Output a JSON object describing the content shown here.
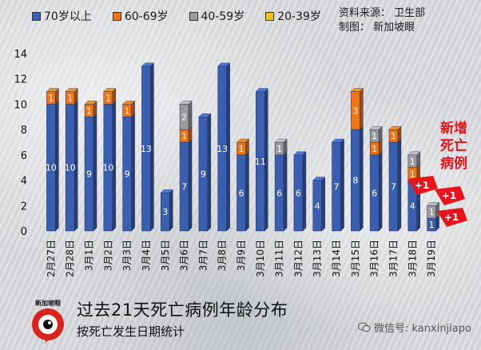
{
  "legend": [
    {
      "label": "70岁以上",
      "color": "#3b5fb0"
    },
    {
      "label": "60-69岁",
      "color": "#f07414"
    },
    {
      "label": "40-59岁",
      "color": "#9b9b9b"
    },
    {
      "label": "20-39岁",
      "color": "#f2c418"
    }
  ],
  "source_line1": "资料来源：   卫生部",
  "source_line2": "制图：   新加坡眼",
  "callout": "新增死亡病例",
  "plus_labels": [
    "+1",
    "+1",
    "+1"
  ],
  "footer_title": "过去21天死亡病例年龄分布",
  "footer_subtitle": "按死亡发生日期统计",
  "logo_text": "新加坡眼",
  "wechat": "微信号: kanxinjiapo",
  "chart_data": {
    "type": "bar",
    "stacked": true,
    "ylim": [
      0,
      14
    ],
    "yticks": [
      0,
      2,
      4,
      6,
      8,
      10,
      12,
      14
    ],
    "categories": [
      "2月27日",
      "2月28日",
      "3月1日",
      "3月2日",
      "3月3日",
      "3月4日",
      "3月5日",
      "3月6日",
      "3月7日",
      "3月8日",
      "3月9日",
      "3月10日",
      "3月11日",
      "3月12日",
      "3月13日",
      "3月14日",
      "3月15日",
      "3月16日",
      "3月17日",
      "3月18日",
      "3月19日"
    ],
    "series": [
      {
        "name": "70岁以上",
        "color": "#3b5fb0",
        "values": [
          10,
          10,
          9,
          10,
          9,
          13,
          3,
          7,
          9,
          13,
          6,
          11,
          6,
          6,
          4,
          7,
          8,
          6,
          7,
          4,
          1
        ]
      },
      {
        "name": "60-69岁",
        "color": "#f07414",
        "values": [
          1,
          1,
          1,
          1,
          1,
          0,
          0,
          1,
          0,
          0,
          1,
          0,
          0,
          0,
          0,
          0,
          3,
          1,
          1,
          1,
          0
        ]
      },
      {
        "name": "40-59岁",
        "color": "#9b9b9b",
        "values": [
          0,
          0,
          0,
          0,
          0,
          0,
          0,
          2,
          0,
          0,
          0,
          0,
          1,
          0,
          0,
          0,
          0,
          1,
          0,
          1,
          1
        ]
      },
      {
        "name": "20-39岁",
        "color": "#f2c418",
        "values": [
          0,
          0,
          0,
          0,
          0,
          0,
          0,
          0,
          0,
          0,
          0,
          0,
          0,
          0,
          0,
          0,
          0,
          0,
          0,
          0,
          0
        ]
      }
    ]
  }
}
